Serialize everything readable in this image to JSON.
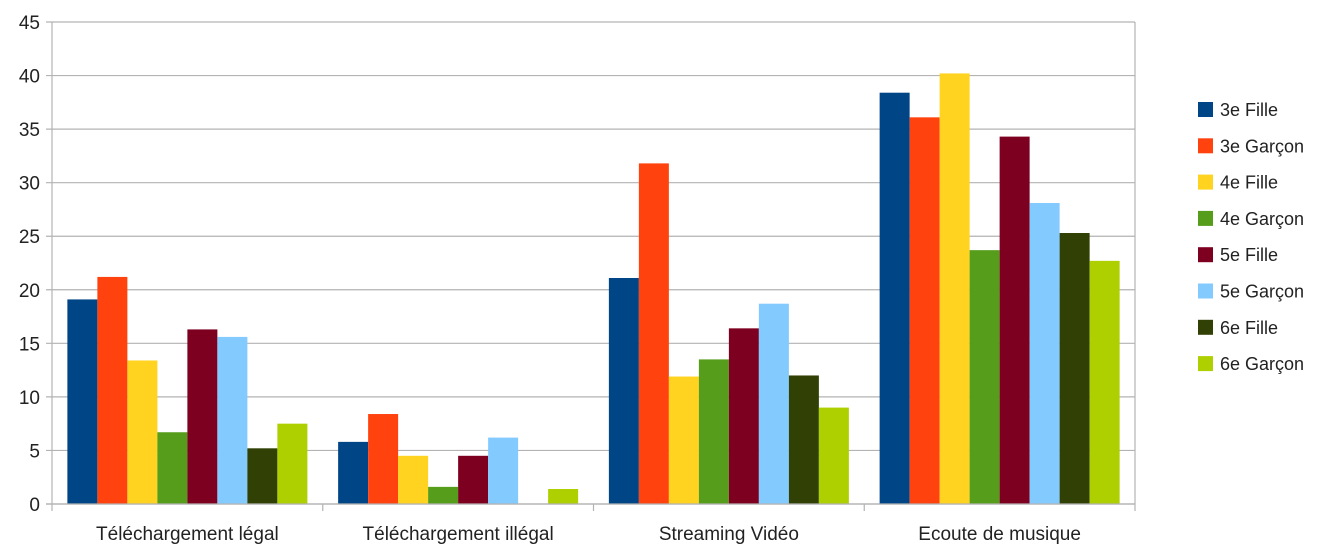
{
  "chart_data": {
    "type": "bar",
    "categories": [
      "Téléchargement légal",
      "Téléchargement illégal",
      "Streaming Vidéo",
      "Ecoute de musique"
    ],
    "series": [
      {
        "name": "3e Fille",
        "color": "#004586",
        "values": [
          19.1,
          5.8,
          21.1,
          38.4
        ]
      },
      {
        "name": "3e Garçon",
        "color": "#ff420e",
        "values": [
          21.2,
          8.4,
          31.8,
          36.1
        ]
      },
      {
        "name": "4e Fille",
        "color": "#ffd320",
        "values": [
          13.4,
          4.5,
          11.9,
          40.2
        ]
      },
      {
        "name": "4e Garçon",
        "color": "#579d1c",
        "values": [
          6.7,
          1.6,
          13.5,
          23.7
        ]
      },
      {
        "name": "5e Fille",
        "color": "#7e0021",
        "values": [
          16.3,
          4.5,
          16.4,
          34.3
        ]
      },
      {
        "name": "5e Garçon",
        "color": "#83caff",
        "values": [
          15.6,
          6.2,
          18.7,
          28.1
        ]
      },
      {
        "name": "6e Fille",
        "color": "#314004",
        "values": [
          5.2,
          0,
          12.0,
          25.3
        ]
      },
      {
        "name": "6e Garçon",
        "color": "#aecf00",
        "values": [
          7.5,
          1.4,
          9.0,
          22.7
        ]
      }
    ],
    "ylim": [
      0,
      45
    ],
    "yticks": [
      "0",
      "5",
      "10",
      "15",
      "20",
      "25",
      "30",
      "35",
      "40",
      "45"
    ],
    "grid": true,
    "legend": "right"
  }
}
